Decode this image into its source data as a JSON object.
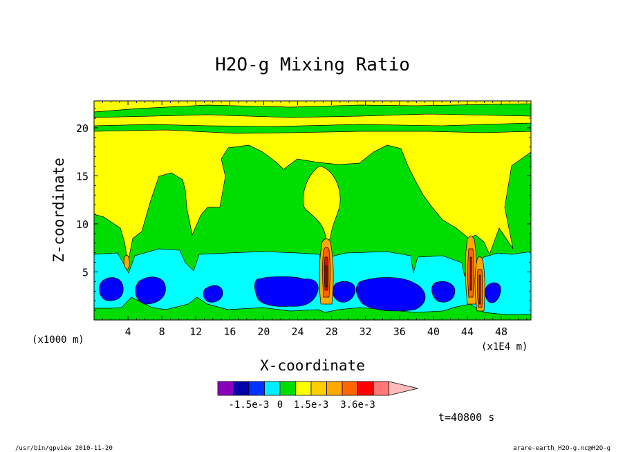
{
  "chart_data": {
    "type": "contour",
    "title": "H2O-g Mixing Ratio",
    "xlabel": "X-coordinate",
    "ylabel": "Z-coordinate",
    "x_unit_left": "(x1000 m)",
    "x_unit_right": "(x1E4 m)",
    "xlim": [
      0,
      51.5
    ],
    "ylim": [
      0,
      22.8
    ],
    "x_ticks": [
      4,
      8,
      12,
      16,
      20,
      24,
      28,
      32,
      36,
      40,
      44,
      48
    ],
    "y_ticks": [
      5,
      10,
      15,
      20
    ],
    "colorbar": {
      "colors": [
        "#8800bb",
        "#0000aa",
        "#0033ff",
        "#00eeff",
        "#00dd00",
        "#ffff00",
        "#ffcc00",
        "#ffaa00",
        "#ff6600",
        "#ff0000",
        "#ff7777",
        "#ffbbbb"
      ],
      "labels": [
        "-1.5e-3",
        "0",
        "1.5e-3",
        "3.6e-3"
      ],
      "label_positions": [
        2,
        4,
        6,
        9
      ]
    },
    "time_label": "t=40800 s",
    "palette": {
      "deep_blue": "#0000ff",
      "cyan": "#00ffff",
      "green": "#00dd00",
      "yellow": "#ffff00",
      "orange": "#ff9900",
      "red": "#ff0000",
      "dark_red": "#aa2200"
    }
  },
  "footer": {
    "left": "/usr/bin/gpview   2010-11-20",
    "right": "arare-earth_H2O-g.nc@H2O-g"
  }
}
